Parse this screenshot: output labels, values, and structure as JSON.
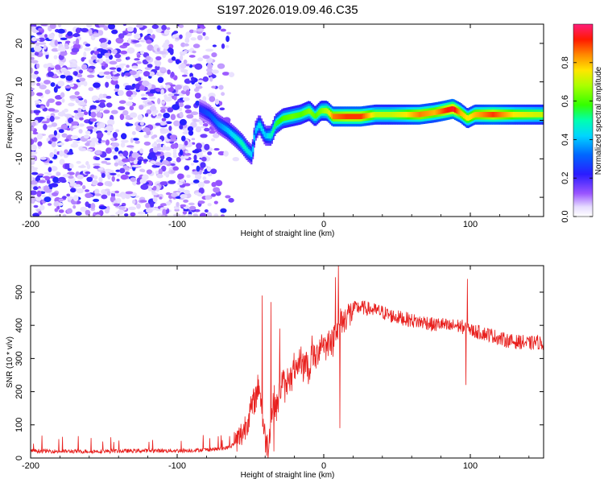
{
  "title": "S197.2026.019.09.46.C35",
  "colors": {
    "snr_line": "#e8201e",
    "axis": "#000000",
    "background": "#ffffff"
  },
  "chart_data": [
    {
      "type": "heatmap",
      "name": "spectrogram",
      "xlabel": "Height of straight line (km)",
      "ylabel": "Frequency (Hz)",
      "xlim": [
        -200,
        150
      ],
      "ylim": [
        -25,
        25
      ],
      "xticks": [
        -200,
        -100,
        0,
        100
      ],
      "yticks": [
        -20,
        -10,
        0,
        10,
        20
      ],
      "xtick_labels": [
        "-200",
        "-100",
        "0",
        "100"
      ],
      "ytick_labels": [
        "-20",
        "-10",
        "0",
        "10",
        "20"
      ],
      "colorbar": {
        "label": "Normalized spectral amplitude",
        "range": [
          0,
          1
        ],
        "ticks": [
          0.0,
          0.2,
          0.4,
          0.6,
          0.8
        ],
        "tick_labels": [
          "0.0",
          "0.2",
          "0.4",
          "0.6",
          "0.8"
        ]
      },
      "noise_region_x": [
        -200,
        -65
      ],
      "ridge": [
        {
          "x": -85,
          "f": 3,
          "a": 0.25
        },
        {
          "x": -78,
          "f": 1.5,
          "a": 0.3
        },
        {
          "x": -72,
          "f": -1,
          "a": 0.35
        },
        {
          "x": -66,
          "f": -2.5,
          "a": 0.4
        },
        {
          "x": -60,
          "f": -4.5,
          "a": 0.45
        },
        {
          "x": -56,
          "f": -6,
          "a": 0.5
        },
        {
          "x": -52,
          "f": -8,
          "a": 0.45
        },
        {
          "x": -49,
          "f": -9,
          "a": 0.4
        },
        {
          "x": -47,
          "f": -3,
          "a": 0.4
        },
        {
          "x": -44,
          "f": -1,
          "a": 0.45
        },
        {
          "x": -40,
          "f": -4,
          "a": 0.4
        },
        {
          "x": -36,
          "f": -4,
          "a": 0.5
        },
        {
          "x": -33,
          "f": -1,
          "a": 0.55
        },
        {
          "x": -28,
          "f": 0.5,
          "a": 0.6
        },
        {
          "x": -22,
          "f": 1,
          "a": 0.62
        },
        {
          "x": -16,
          "f": 1.5,
          "a": 0.6
        },
        {
          "x": -10,
          "f": 2.5,
          "a": 0.65
        },
        {
          "x": -6,
          "f": 1,
          "a": 0.6
        },
        {
          "x": -2,
          "f": 2.5,
          "a": 0.65
        },
        {
          "x": 2,
          "f": 2.5,
          "a": 0.7
        },
        {
          "x": 6,
          "f": 1,
          "a": 0.85
        },
        {
          "x": 15,
          "f": 1,
          "a": 0.9
        },
        {
          "x": 25,
          "f": 1,
          "a": 0.9
        },
        {
          "x": 35,
          "f": 1.5,
          "a": 0.7
        },
        {
          "x": 45,
          "f": 1.5,
          "a": 0.7
        },
        {
          "x": 55,
          "f": 1.5,
          "a": 0.75
        },
        {
          "x": 65,
          "f": 1.5,
          "a": 0.85
        },
        {
          "x": 75,
          "f": 2,
          "a": 0.8
        },
        {
          "x": 82,
          "f": 2.5,
          "a": 0.9
        },
        {
          "x": 88,
          "f": 3,
          "a": 0.95
        },
        {
          "x": 93,
          "f": 2,
          "a": 0.8
        },
        {
          "x": 98,
          "f": 0.5,
          "a": 0.75
        },
        {
          "x": 103,
          "f": 1.5,
          "a": 0.8
        },
        {
          "x": 115,
          "f": 1.5,
          "a": 0.9
        },
        {
          "x": 130,
          "f": 1.5,
          "a": 0.75
        },
        {
          "x": 150,
          "f": 1.5,
          "a": 0.7
        }
      ]
    },
    {
      "type": "line",
      "name": "snr",
      "xlabel": "Height of straight line (km)",
      "ylabel": "SNR (10 * v/v)",
      "xlim": [
        -200,
        150
      ],
      "ylim": [
        0,
        580
      ],
      "xticks": [
        -200,
        -100,
        0,
        100
      ],
      "yticks": [
        0,
        100,
        200,
        300,
        400,
        500
      ],
      "xtick_labels": [
        "-200",
        "-100",
        "0",
        "100"
      ],
      "ytick_labels": [
        "0",
        "100",
        "200",
        "300",
        "400",
        "500"
      ],
      "series": [
        {
          "name": "SNR",
          "x": [
            -200,
            -180,
            -160,
            -140,
            -120,
            -100,
            -90,
            -80,
            -70,
            -65,
            -60,
            -55,
            -50,
            -46,
            -44,
            -42,
            -40,
            -38,
            -36,
            -34,
            -32,
            -30,
            -28,
            -26,
            -24,
            -22,
            -20,
            -18,
            -16,
            -14,
            -12,
            -10,
            -8,
            -6,
            -4,
            -2,
            0,
            2,
            4,
            6,
            8,
            10,
            12,
            14,
            16,
            18,
            20,
            25,
            30,
            35,
            40,
            45,
            50,
            55,
            60,
            65,
            70,
            75,
            80,
            85,
            90,
            95,
            97,
            98,
            99,
            100,
            105,
            110,
            115,
            120,
            125,
            130,
            135,
            140,
            145,
            150
          ],
          "values": [
            22,
            20,
            20,
            21,
            22,
            22,
            23,
            25,
            28,
            32,
            45,
            80,
            140,
            190,
            230,
            120,
            60,
            35,
            120,
            180,
            150,
            200,
            240,
            200,
            260,
            230,
            280,
            240,
            310,
            270,
            300,
            250,
            330,
            290,
            320,
            350,
            350,
            330,
            370,
            340,
            400,
            380,
            420,
            410,
            440,
            430,
            450,
            455,
            450,
            445,
            440,
            430,
            425,
            420,
            415,
            410,
            410,
            400,
            405,
            395,
            400,
            395,
            390,
            380,
            400,
            385,
            380,
            375,
            370,
            360,
            355,
            350,
            350,
            345,
            350,
            345
          ],
          "peaks": [
            {
              "x": -42,
              "value": 490
            },
            {
              "x": -36,
              "value": 470
            },
            {
              "x": -30,
              "value": 390
            },
            {
              "x": 10,
              "value": 580
            },
            {
              "x": 8,
              "value": 545
            },
            {
              "x": 11,
              "value": 90
            },
            {
              "x": 98,
              "value": 540
            },
            {
              "x": 97,
              "value": 220
            },
            {
              "x": -34,
              "value": 20
            }
          ]
        }
      ]
    }
  ]
}
